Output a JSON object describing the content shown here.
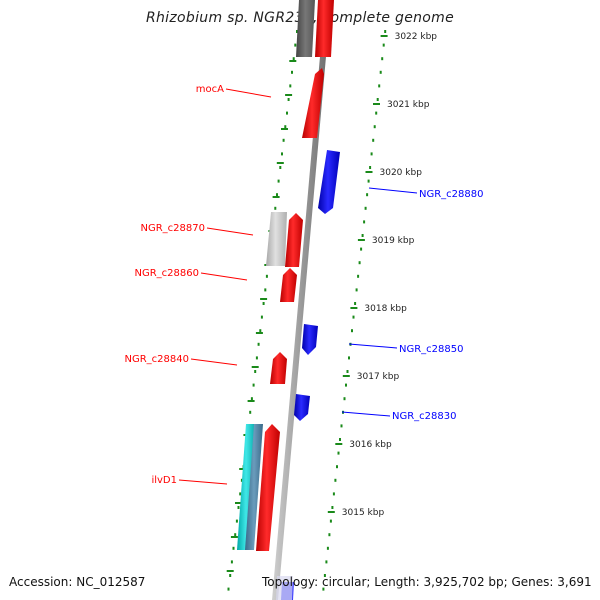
{
  "title": "Rhizobium sp. NGR234, complete genome",
  "footer": {
    "accession": "Accession: NC_012587",
    "summary": "Topology: circular; Length: 3,925,702 bp; Genes: 3,691"
  },
  "colors": {
    "forward": "#ff0000",
    "reverse": "#0000ff",
    "tick": "#1a8a1a",
    "backbone": "#888888"
  },
  "ticks": [
    {
      "label": "3022 kbp",
      "kb": 3022
    },
    {
      "label": "3021 kbp",
      "kb": 3021
    },
    {
      "label": "3020 kbp",
      "kb": 3020
    },
    {
      "label": "3019 kbp",
      "kb": 3019
    },
    {
      "label": "3018 kbp",
      "kb": 3018
    },
    {
      "label": "3017 kbp",
      "kb": 3017
    },
    {
      "label": "3016 kbp",
      "kb": 3016
    },
    {
      "label": "3015 kbp",
      "kb": 3015
    }
  ],
  "genes": [
    {
      "name": "mocA",
      "strand": "+",
      "color": "#ff0000"
    },
    {
      "name": "NGR_c28880",
      "strand": "-",
      "color": "#0000ff"
    },
    {
      "name": "NGR_c28870",
      "strand": "+",
      "color": "#ff0000"
    },
    {
      "name": "NGR_c28860",
      "strand": "+",
      "color": "#ff0000"
    },
    {
      "name": "NGR_c28850",
      "strand": "-",
      "color": "#0000ff"
    },
    {
      "name": "NGR_c28840",
      "strand": "+",
      "color": "#ff0000"
    },
    {
      "name": "NGR_c28830",
      "strand": "-",
      "color": "#0000ff"
    },
    {
      "name": "ilvD1",
      "strand": "+",
      "color": "#ff0000"
    }
  ]
}
